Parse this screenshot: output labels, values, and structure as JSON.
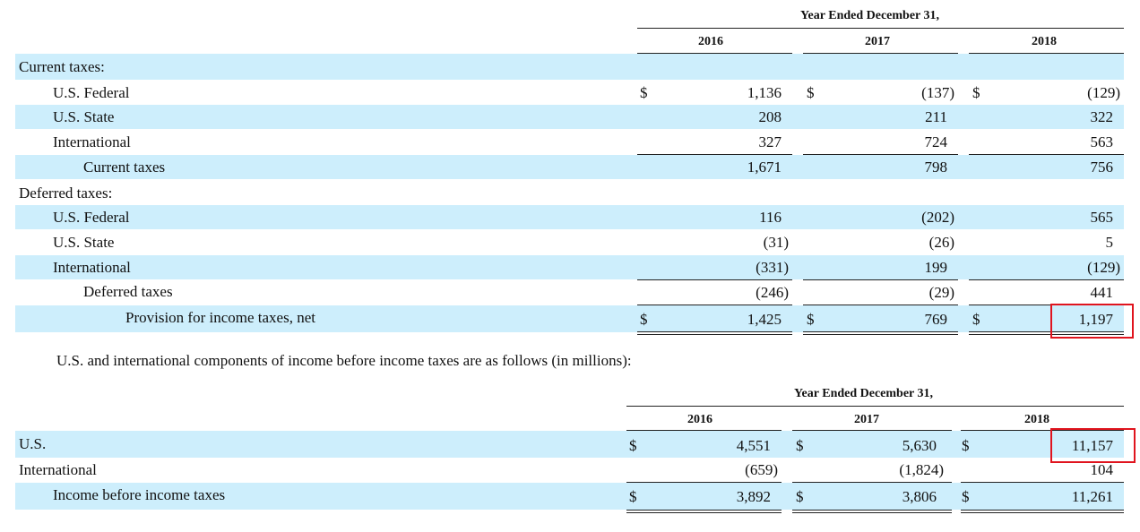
{
  "table1": {
    "header": "Year Ended December 31,",
    "years": [
      "2016",
      "2017",
      "2018"
    ],
    "section_current": "Current taxes:",
    "section_deferred": "Deferred taxes:",
    "currency": "$",
    "rows": [
      {
        "label": "U.S. Federal",
        "values": [
          "1,136",
          "(137)",
          "(129)"
        ]
      },
      {
        "label": "U.S. State",
        "values": [
          "208",
          "211",
          "322"
        ]
      },
      {
        "label": "International",
        "values": [
          "327",
          "724",
          "563"
        ]
      },
      {
        "label": "Current taxes",
        "values": [
          "1,671",
          "798",
          "756"
        ]
      },
      {
        "label": "U.S. Federal",
        "values": [
          "116",
          "(202)",
          "565"
        ]
      },
      {
        "label": "U.S. State",
        "values": [
          "(31)",
          "(26)",
          "5"
        ]
      },
      {
        "label": "International",
        "values": [
          "(331)",
          "199",
          "(129)"
        ]
      },
      {
        "label": "Deferred taxes",
        "values": [
          "(246)",
          "(29)",
          "441"
        ]
      },
      {
        "label": "Provision for income taxes, net",
        "values": [
          "1,425",
          "769",
          "1,197"
        ]
      }
    ],
    "highlight_color": "#e0141e"
  },
  "intro_text": "U.S. and international components of income before income taxes are as follows (in millions):",
  "table2": {
    "header": "Year Ended December 31,",
    "years": [
      "2016",
      "2017",
      "2018"
    ],
    "currency": "$",
    "rows": [
      {
        "label": "U.S.",
        "values": [
          "4,551",
          "5,630",
          "11,157"
        ]
      },
      {
        "label": "International",
        "values": [
          "(659)",
          "(1,824)",
          "104"
        ]
      },
      {
        "label": "Income before income taxes",
        "values": [
          "3,892",
          "3,806",
          "11,261"
        ]
      }
    ]
  },
  "band_color": "#cdeefc"
}
